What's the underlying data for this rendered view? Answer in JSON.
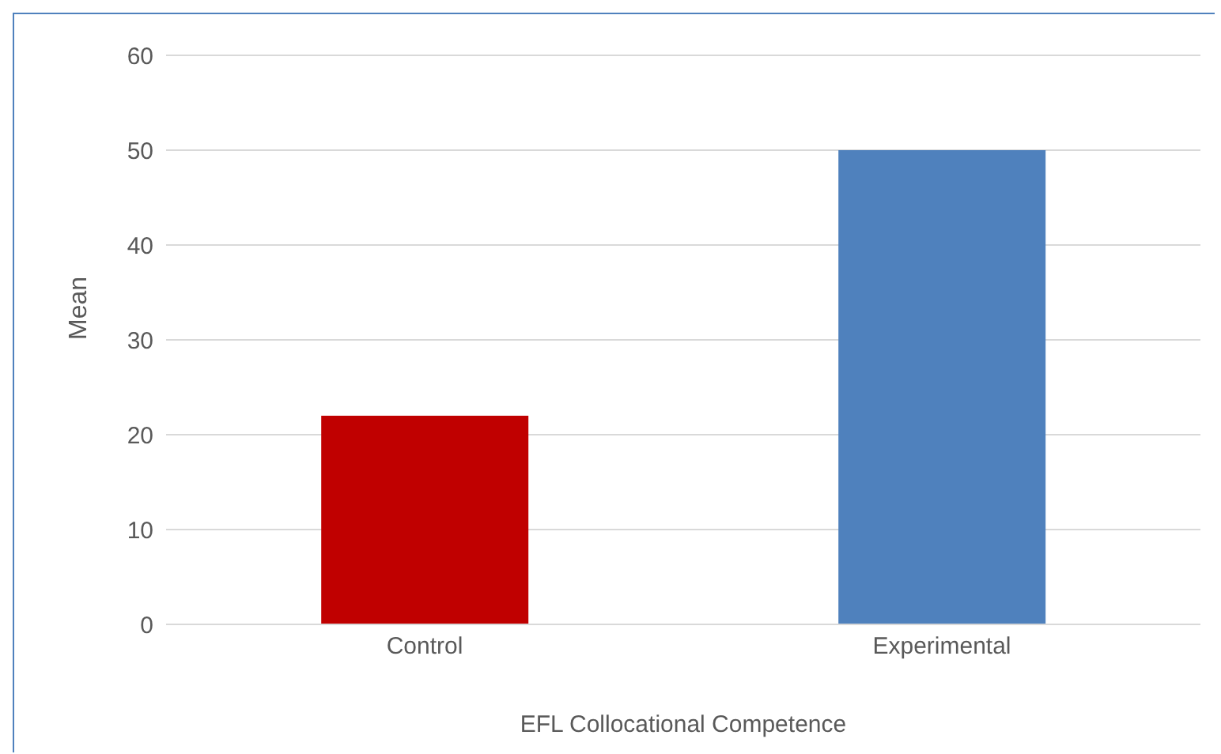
{
  "chart_data": {
    "type": "bar",
    "categories": [
      "Control",
      "Experimental"
    ],
    "values": [
      22,
      50
    ],
    "colors": [
      "#c00000",
      "#4f81bd"
    ],
    "ylabel": "Mean",
    "xlabel": "EFL Collocational Competence",
    "ylim": [
      0,
      60
    ],
    "yticks": [
      0,
      10,
      20,
      30,
      40,
      50,
      60
    ],
    "grid": "y",
    "legend": false
  }
}
